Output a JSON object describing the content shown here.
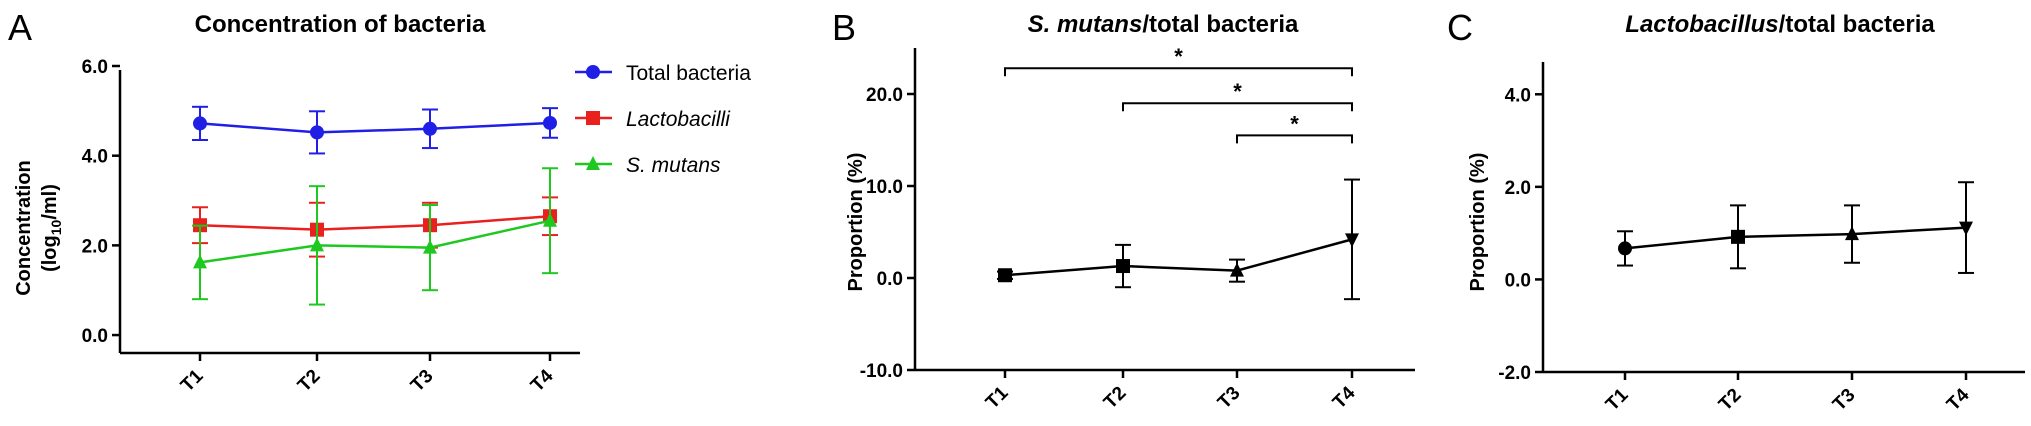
{
  "panels": {
    "A": {
      "letter": "A",
      "title": "Concentration of bacteria"
    },
    "B": {
      "letter": "B",
      "title_italic": "S. mutans",
      "title_rest": "/total bacteria"
    },
    "C": {
      "letter": "C",
      "title_italic": "Lactobacillus",
      "title_rest": "/total bacteria"
    }
  },
  "chart_data": [
    {
      "type": "line",
      "title": "Concentration of bacteria",
      "ylabel": "Concentration (log10/ml)",
      "ylabel_line1": "Concentration",
      "ylabel_line2_pre": "(log",
      "ylabel_line2_sub": "10",
      "ylabel_line2_post": "/ml)",
      "categories": [
        "T1",
        "T2",
        "T3",
        "T4"
      ],
      "ylim": [
        -0.4,
        6.0
      ],
      "yticks": [
        0.0,
        2.0,
        4.0,
        6.0
      ],
      "ytick_labels": [
        "0.0",
        "2.0",
        "4.0",
        "6.0"
      ],
      "legend_position": "top-right",
      "series": [
        {
          "name": "Total bacteria",
          "italic": false,
          "color": "#1f1fe6",
          "marker": "circle",
          "values": [
            4.72,
            4.52,
            4.6,
            4.73
          ],
          "errors": [
            0.37,
            0.47,
            0.43,
            0.33
          ]
        },
        {
          "name": "Lactobacilli",
          "italic": true,
          "color": "#e8211f",
          "marker": "square",
          "values": [
            2.45,
            2.35,
            2.45,
            2.65
          ],
          "errors": [
            0.4,
            0.6,
            0.5,
            0.42
          ]
        },
        {
          "name": "S. mutans",
          "italic": true,
          "color": "#1fc81f",
          "marker": "triangle",
          "values": [
            1.62,
            2.0,
            1.95,
            2.55
          ],
          "errors": [
            0.82,
            1.32,
            0.95,
            1.17
          ]
        }
      ]
    },
    {
      "type": "line",
      "title": "S. mutans/total bacteria",
      "ylabel": "Proportion (%)",
      "categories": [
        "T1",
        "T2",
        "T3",
        "T4"
      ],
      "ylim": [
        -10.0,
        25.0
      ],
      "yticks": [
        -10.0,
        0.0,
        10.0,
        20.0
      ],
      "ytick_labels": [
        "-10.0",
        "0.0",
        "10.0",
        "20.0"
      ],
      "series": [
        {
          "name": "",
          "color": "#000000",
          "values": [
            0.3,
            1.3,
            0.8,
            4.2
          ],
          "errors": [
            0.4,
            2.3,
            1.2,
            6.5
          ],
          "markers": [
            "square",
            "square",
            "triangle",
            "triangle-down"
          ]
        }
      ],
      "significance": [
        {
          "from": "T1",
          "to": "T4",
          "label": "*",
          "level": 22.8
        },
        {
          "from": "T2",
          "to": "T4",
          "label": "*",
          "level": 19.0
        },
        {
          "from": "T3",
          "to": "T4",
          "label": "*",
          "level": 15.5
        }
      ]
    },
    {
      "type": "line",
      "title": "Lactobacillus/total bacteria",
      "ylabel": "Proportion (%)",
      "categories": [
        "T1",
        "T2",
        "T3",
        "T4"
      ],
      "ylim": [
        -2.0,
        5.0
      ],
      "yticks": [
        -2.0,
        0.0,
        2.0,
        4.0
      ],
      "ytick_labels": [
        "-2.0",
        "0.0",
        "2.0",
        "4.0"
      ],
      "series": [
        {
          "name": "",
          "color": "#000000",
          "values": [
            0.67,
            0.92,
            0.98,
            1.12
          ],
          "errors": [
            0.37,
            0.68,
            0.62,
            0.98
          ],
          "markers": [
            "circle",
            "square",
            "triangle",
            "triangle-down"
          ]
        }
      ]
    }
  ]
}
